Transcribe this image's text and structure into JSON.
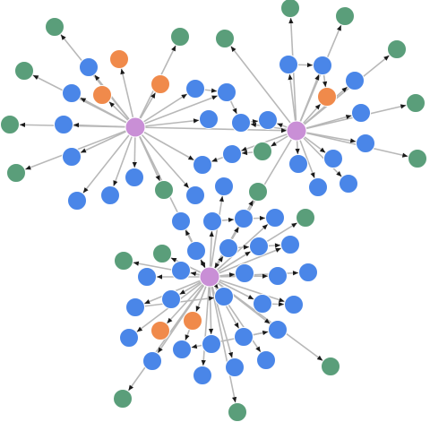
{
  "palette": {
    "hub": "#c98fd6",
    "entity": "#4a86e8",
    "highlight": "#f08a4b",
    "attribute": "#5a9e7a",
    "edge": "#b8b8b8",
    "arrow": "#1a1a1a"
  },
  "node_labels": {
    "hub_a": "",
    "hub_b": "",
    "hub_c": ""
  }
}
